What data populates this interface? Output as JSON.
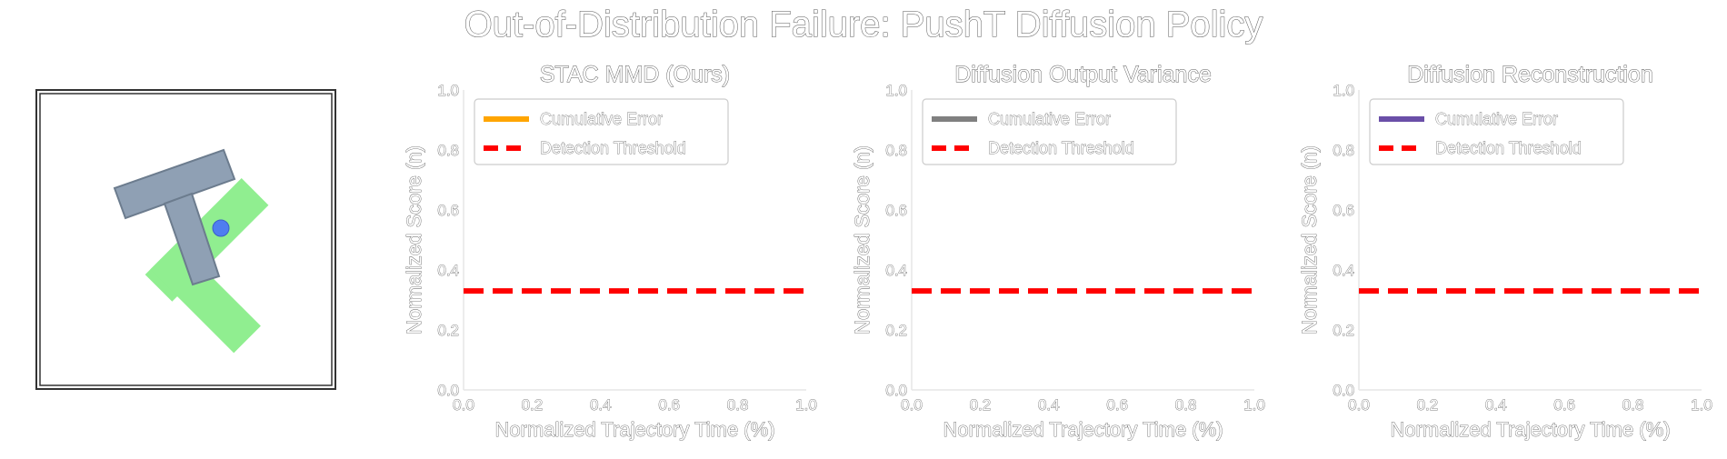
{
  "figure": {
    "title": "Out-of-Distribution Failure: PushT Diffusion Policy",
    "threshold_color": "#ff0000"
  },
  "scene": {
    "description_icon": "pusht-scene",
    "t_block_color": "#8fa0b4",
    "target_color": "#90ee90",
    "agent_color": "#4f7df0"
  },
  "chart_data": [
    {
      "type": "line",
      "title": "STAC MMD (Ours)",
      "xlabel": "Normalized Trajectory Time (%)",
      "ylabel": "Normalized Score (n)",
      "xlim": [
        0.0,
        1.0
      ],
      "ylim": [
        0.0,
        1.0
      ],
      "xticks": [
        "0.0",
        "0.2",
        "0.4",
        "0.6",
        "0.8",
        "1.0"
      ],
      "yticks": [
        "0.0",
        "0.2",
        "0.4",
        "0.6",
        "0.8",
        "1.0"
      ],
      "grid": false,
      "legend_placement": "upper-left",
      "series": [
        {
          "name": "Cumulative Error",
          "color": "#ffa500",
          "style": "solid",
          "x": [],
          "y": []
        },
        {
          "name": "Detection Threshold",
          "color": "#ff0000",
          "style": "dashed",
          "x": [
            0.0,
            1.0
          ],
          "y": [
            0.33,
            0.33
          ]
        }
      ]
    },
    {
      "type": "line",
      "title": "Diffusion Output Variance",
      "xlabel": "Normalized Trajectory Time (%)",
      "ylabel": "Normalized Score (n)",
      "xlim": [
        0.0,
        1.0
      ],
      "ylim": [
        0.0,
        1.0
      ],
      "xticks": [
        "0.0",
        "0.2",
        "0.4",
        "0.6",
        "0.8",
        "1.0"
      ],
      "yticks": [
        "0.0",
        "0.2",
        "0.4",
        "0.6",
        "0.8",
        "1.0"
      ],
      "grid": false,
      "legend_placement": "upper-left",
      "series": [
        {
          "name": "Cumulative Error",
          "color": "#808080",
          "style": "solid",
          "x": [],
          "y": []
        },
        {
          "name": "Detection Threshold",
          "color": "#ff0000",
          "style": "dashed",
          "x": [
            0.0,
            1.0
          ],
          "y": [
            0.33,
            0.33
          ]
        }
      ]
    },
    {
      "type": "line",
      "title": "Diffusion Reconstruction",
      "xlabel": "Normalized Trajectory Time (%)",
      "ylabel": "Normalized Score (n)",
      "xlim": [
        0.0,
        1.0
      ],
      "ylim": [
        0.0,
        1.0
      ],
      "xticks": [
        "0.0",
        "0.2",
        "0.4",
        "0.6",
        "0.8",
        "1.0"
      ],
      "yticks": [
        "0.0",
        "0.2",
        "0.4",
        "0.6",
        "0.8",
        "1.0"
      ],
      "grid": false,
      "legend_placement": "upper-left",
      "series": [
        {
          "name": "Cumulative Error",
          "color": "#6a4fa8",
          "style": "solid",
          "x": [],
          "y": []
        },
        {
          "name": "Detection Threshold",
          "color": "#ff0000",
          "style": "dashed",
          "x": [
            0.0,
            1.0
          ],
          "y": [
            0.33,
            0.33
          ]
        }
      ]
    }
  ]
}
